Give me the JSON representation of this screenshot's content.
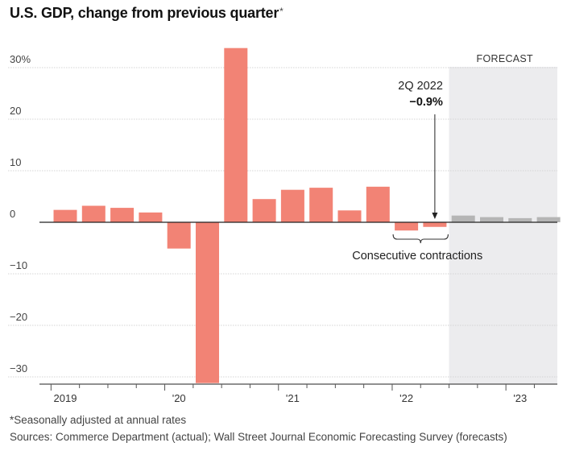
{
  "title": "U.S. GDP, change from previous quarter",
  "title_marker": "*",
  "forecast_label": "FORECAST",
  "annotation": {
    "label": "2Q 2022",
    "value": "−0.9%",
    "bracket_label": "Consecutive contractions"
  },
  "footnote": "*Seasonally adjusted at annual rates",
  "sources": "Sources: Commerce Department (actual); Wall Street Journal Economic Forecasting Survey (forecasts)",
  "colors": {
    "actual": "#f28375",
    "forecast": "#b5b5b5",
    "forecast_bg": "#ececee"
  },
  "chart_data": {
    "type": "bar",
    "y_ticks": [
      {
        "value": 30,
        "label": "30%"
      },
      {
        "value": 20,
        "label": "20"
      },
      {
        "value": 10,
        "label": "10"
      },
      {
        "value": 0,
        "label": "0"
      },
      {
        "value": -10,
        "label": "−10"
      },
      {
        "value": -20,
        "label": "−20"
      },
      {
        "value": -30,
        "label": "−30"
      }
    ],
    "ylim": [
      -31.5,
      33.8
    ],
    "x_year_labels": [
      {
        "label": "2019",
        "quarter_index": 0
      },
      {
        "label": "'20",
        "quarter_index": 4
      },
      {
        "label": "'21",
        "quarter_index": 8
      },
      {
        "label": "'22",
        "quarter_index": 12
      },
      {
        "label": "'23",
        "quarter_index": 16
      }
    ],
    "quarters": [
      {
        "q": "1Q 2019",
        "value": 2.4,
        "forecast": false
      },
      {
        "q": "2Q 2019",
        "value": 3.2,
        "forecast": false
      },
      {
        "q": "3Q 2019",
        "value": 2.8,
        "forecast": false
      },
      {
        "q": "4Q 2019",
        "value": 1.9,
        "forecast": false
      },
      {
        "q": "1Q 2020",
        "value": -5.1,
        "forecast": false
      },
      {
        "q": "2Q 2020",
        "value": -31.2,
        "forecast": false
      },
      {
        "q": "3Q 2020",
        "value": 33.8,
        "forecast": false
      },
      {
        "q": "4Q 2020",
        "value": 4.5,
        "forecast": false
      },
      {
        "q": "1Q 2021",
        "value": 6.3,
        "forecast": false
      },
      {
        "q": "2Q 2021",
        "value": 6.7,
        "forecast": false
      },
      {
        "q": "3Q 2021",
        "value": 2.3,
        "forecast": false
      },
      {
        "q": "4Q 2021",
        "value": 6.9,
        "forecast": false
      },
      {
        "q": "1Q 2022",
        "value": -1.6,
        "forecast": false
      },
      {
        "q": "2Q 2022",
        "value": -0.9,
        "forecast": false
      },
      {
        "q": "3Q 2022",
        "value": 1.3,
        "forecast": true
      },
      {
        "q": "4Q 2022",
        "value": 1.0,
        "forecast": true
      },
      {
        "q": "1Q 2023",
        "value": 0.8,
        "forecast": true
      },
      {
        "q": "2Q 2023",
        "value": 1.0,
        "forecast": true
      }
    ]
  }
}
